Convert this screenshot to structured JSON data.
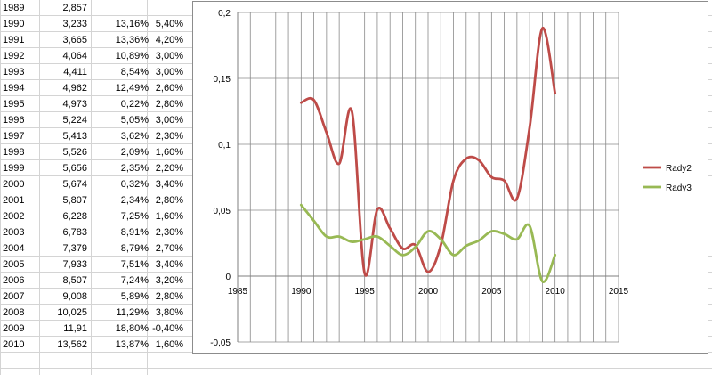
{
  "table": {
    "rows": [
      {
        "year": "1989",
        "value": "2,857",
        "pct1": "",
        "pct2": ""
      },
      {
        "year": "1990",
        "value": "3,233",
        "pct1": "13,16%",
        "pct2": "5,40%"
      },
      {
        "year": "1991",
        "value": "3,665",
        "pct1": "13,36%",
        "pct2": "4,20%"
      },
      {
        "year": "1992",
        "value": "4,064",
        "pct1": "10,89%",
        "pct2": "3,00%"
      },
      {
        "year": "1993",
        "value": "4,411",
        "pct1": "8,54%",
        "pct2": "3,00%"
      },
      {
        "year": "1994",
        "value": "4,962",
        "pct1": "12,49%",
        "pct2": "2,60%"
      },
      {
        "year": "1995",
        "value": "4,973",
        "pct1": "0,22%",
        "pct2": "2,80%"
      },
      {
        "year": "1996",
        "value": "5,224",
        "pct1": "5,05%",
        "pct2": "3,00%"
      },
      {
        "year": "1997",
        "value": "5,413",
        "pct1": "3,62%",
        "pct2": "2,30%"
      },
      {
        "year": "1998",
        "value": "5,526",
        "pct1": "2,09%",
        "pct2": "1,60%"
      },
      {
        "year": "1999",
        "value": "5,656",
        "pct1": "2,35%",
        "pct2": "2,20%"
      },
      {
        "year": "2000",
        "value": "5,674",
        "pct1": "0,32%",
        "pct2": "3,40%"
      },
      {
        "year": "2001",
        "value": "5,807",
        "pct1": "2,34%",
        "pct2": "2,80%"
      },
      {
        "year": "2002",
        "value": "6,228",
        "pct1": "7,25%",
        "pct2": "1,60%"
      },
      {
        "year": "2003",
        "value": "6,783",
        "pct1": "8,91%",
        "pct2": "2,30%"
      },
      {
        "year": "2004",
        "value": "7,379",
        "pct1": "8,79%",
        "pct2": "2,70%"
      },
      {
        "year": "2005",
        "value": "7,933",
        "pct1": "7,51%",
        "pct2": "3,40%"
      },
      {
        "year": "2006",
        "value": "8,507",
        "pct1": "7,24%",
        "pct2": "3,20%"
      },
      {
        "year": "2007",
        "value": "9,008",
        "pct1": "5,89%",
        "pct2": "2,80%"
      },
      {
        "year": "2008",
        "value": "10,025",
        "pct1": "11,29%",
        "pct2": "3,80%"
      },
      {
        "year": "2009",
        "value": "11,91",
        "pct1": "18,80%",
        "pct2": "-0,40%"
      },
      {
        "year": "2010",
        "value": "13,562",
        "pct1": "13,87%",
        "pct2": "1,60%"
      }
    ]
  },
  "chart_data": {
    "type": "scatter",
    "xlim": [
      1985,
      2015
    ],
    "ylim": [
      -0.05,
      0.2
    ],
    "x_ticks": [
      "1985",
      "1990",
      "1995",
      "2000",
      "2005",
      "2010",
      "2015"
    ],
    "y_ticks": [
      "0,2",
      "0,15",
      "0,1",
      "0,05",
      "0",
      "-0,05"
    ],
    "grid": true,
    "legend_position": "right",
    "series": [
      {
        "name": "Rady2",
        "color": "#be4b48",
        "x": [
          1990,
          1991,
          1992,
          1993,
          1994,
          1995,
          1996,
          1997,
          1998,
          1999,
          2000,
          2001,
          2002,
          2003,
          2004,
          2005,
          2006,
          2007,
          2008,
          2009,
          2010
        ],
        "y": [
          0.1316,
          0.1336,
          0.1089,
          0.0854,
          0.1249,
          0.0022,
          0.0505,
          0.0362,
          0.0209,
          0.0235,
          0.0032,
          0.0234,
          0.0725,
          0.0891,
          0.0879,
          0.0751,
          0.0724,
          0.0589,
          0.1129,
          0.188,
          0.1387
        ]
      },
      {
        "name": "Rady3",
        "color": "#98b954",
        "x": [
          1990,
          1991,
          1992,
          1993,
          1994,
          1995,
          1996,
          1997,
          1998,
          1999,
          2000,
          2001,
          2002,
          2003,
          2004,
          2005,
          2006,
          2007,
          2008,
          2009,
          2010
        ],
        "y": [
          0.054,
          0.042,
          0.03,
          0.03,
          0.026,
          0.028,
          0.03,
          0.023,
          0.016,
          0.022,
          0.034,
          0.028,
          0.016,
          0.023,
          0.027,
          0.034,
          0.032,
          0.028,
          0.038,
          -0.004,
          0.016
        ]
      }
    ]
  }
}
